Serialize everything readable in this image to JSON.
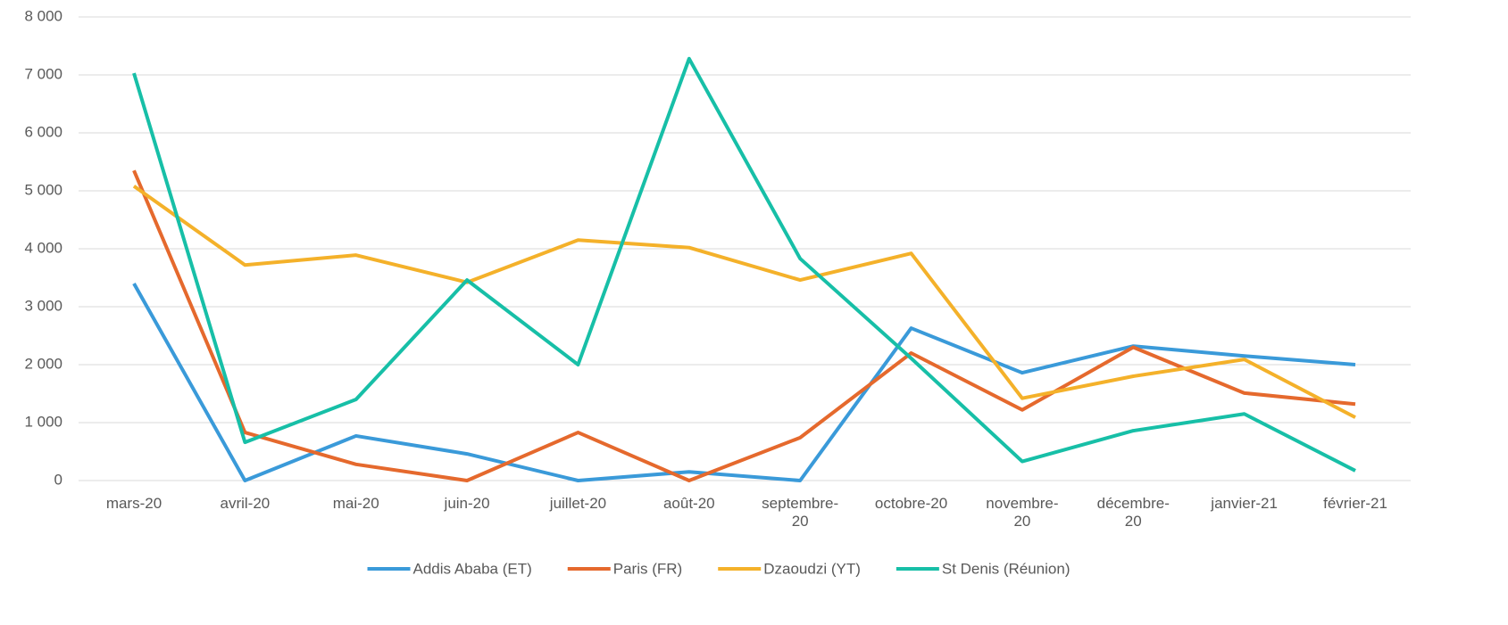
{
  "chart_data": {
    "type": "line",
    "categories": [
      "mars-20",
      "avril-20",
      "mai-20",
      "juin-20",
      "juillet-20",
      "août-20",
      "septembre-20",
      "octobre-20",
      "novembre-20",
      "décembre-20",
      "janvier-21",
      "février-21"
    ],
    "series": [
      {
        "name": "Addis Ababa (ET)",
        "color": "#3a9ad9",
        "values": [
          3400,
          0,
          770,
          460,
          0,
          150,
          0,
          2630,
          1860,
          2320,
          2150,
          2000
        ]
      },
      {
        "name": "Paris (FR)",
        "color": "#e5692d",
        "values": [
          5350,
          830,
          280,
          0,
          830,
          0,
          740,
          2200,
          1220,
          2300,
          1510,
          1320
        ]
      },
      {
        "name": "Dzaoudzi (YT)",
        "color": "#f4b12a",
        "values": [
          5080,
          3720,
          3890,
          3420,
          4150,
          4020,
          3460,
          3920,
          1420,
          1800,
          2090,
          1090
        ]
      },
      {
        "name": "St Denis (Réunion)",
        "color": "#17bfa7",
        "values": [
          7030,
          660,
          1400,
          3460,
          2000,
          7280,
          3830,
          2110,
          330,
          860,
          1150,
          170
        ]
      }
    ],
    "ylim": [
      0,
      8000
    ],
    "yticks": [
      0,
      {
        "value": 1000,
        "label": "1 000"
      },
      {
        "value": 2000,
        "label": "2 000"
      },
      {
        "value": 3000,
        "label": "3 000"
      },
      {
        "value": 4000,
        "label": "4 000"
      },
      {
        "value": 5000,
        "label": "5 000"
      },
      {
        "value": 6000,
        "label": "6 000"
      },
      {
        "value": 7000,
        "label": "7 000"
      },
      {
        "value": 8000,
        "label": "8 000"
      }
    ],
    "grid": true,
    "legend": "bottom"
  }
}
